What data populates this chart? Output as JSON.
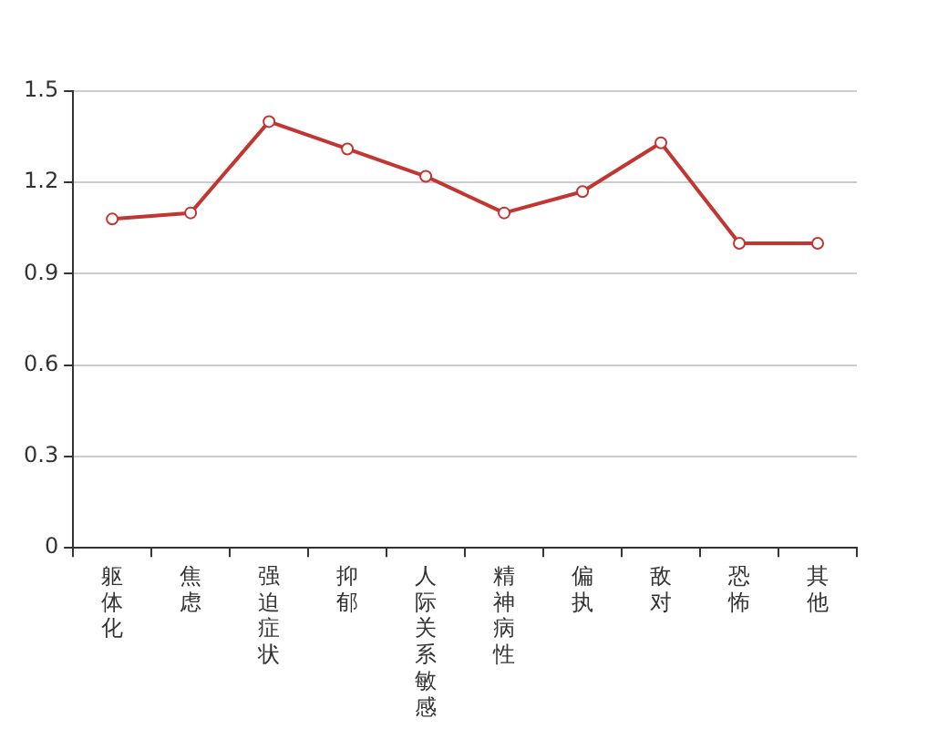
{
  "chart_data": {
    "type": "line",
    "categories": [
      "躯体化",
      "焦虑",
      "强迫症状",
      "抑郁",
      "人际关系敏感",
      "精神病性",
      "偏执",
      "敌对",
      "恐怖",
      "其他"
    ],
    "series": [
      {
        "color": "#c23531",
        "values": [
          1.08,
          1.1,
          1.4,
          1.31,
          1.22,
          1.1,
          1.17,
          1.33,
          1.0,
          1.0
        ]
      }
    ],
    "ylim": [
      0,
      1.5
    ],
    "yticks": [
      0,
      0.3,
      0.6,
      0.9,
      1.2,
      1.5
    ],
    "grid": "y",
    "legend": false,
    "marker": "circle",
    "line_style": "solid"
  }
}
